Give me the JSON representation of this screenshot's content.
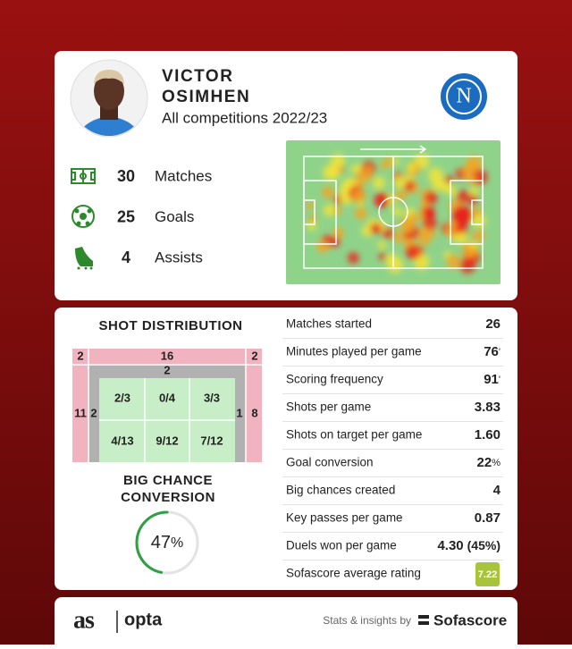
{
  "player": {
    "first_name": "VICTOR",
    "last_name": "OSIMHEN",
    "subtitle": "All competitions 2022/23",
    "club_logo": "N"
  },
  "summary": [
    {
      "value": 30,
      "label": "Matches"
    },
    {
      "value": 25,
      "label": "Goals"
    },
    {
      "value": 4,
      "label": "Assists"
    }
  ],
  "shot_distribution": {
    "title": "SHOT DISTRIBUTION",
    "outside_left_top": 2,
    "outside_top": 16,
    "outside_right_top": 2,
    "outside_left": 11,
    "outside_right": 8,
    "box_left": 2,
    "box_top": 2,
    "box_right": 1,
    "six_yard": [
      [
        "2/3",
        "0/4",
        "3/3"
      ],
      [
        "4/13",
        "9/12",
        "7/12"
      ]
    ]
  },
  "big_chance": {
    "title": "BIG CHANCE CONVERSION",
    "value": 47,
    "unit": "%"
  },
  "stats": [
    {
      "label": "Matches started",
      "value": "26"
    },
    {
      "label": "Minutes played per game",
      "value": "76",
      "unit": "'"
    },
    {
      "label": "Scoring frequency",
      "value": "91",
      "unit": "'"
    },
    {
      "label": "Shots per game",
      "value": "3.83"
    },
    {
      "label": "Shots on target per game",
      "value": "1.60"
    },
    {
      "label": "Goal conversion",
      "value": "22",
      "unit": "%"
    },
    {
      "label": "Big chances created",
      "value": "4"
    },
    {
      "label": "Key passes per game",
      "value": "0.87"
    },
    {
      "label": "Duels won per game",
      "value": "4.30",
      "detail": "(45%)"
    },
    {
      "label": "Sofascore average rating",
      "rating": "7.22"
    }
  ],
  "footer": {
    "brand": "as",
    "partner": "opta",
    "credit": "Stats & insights by",
    "provider": "Sofascore"
  }
}
